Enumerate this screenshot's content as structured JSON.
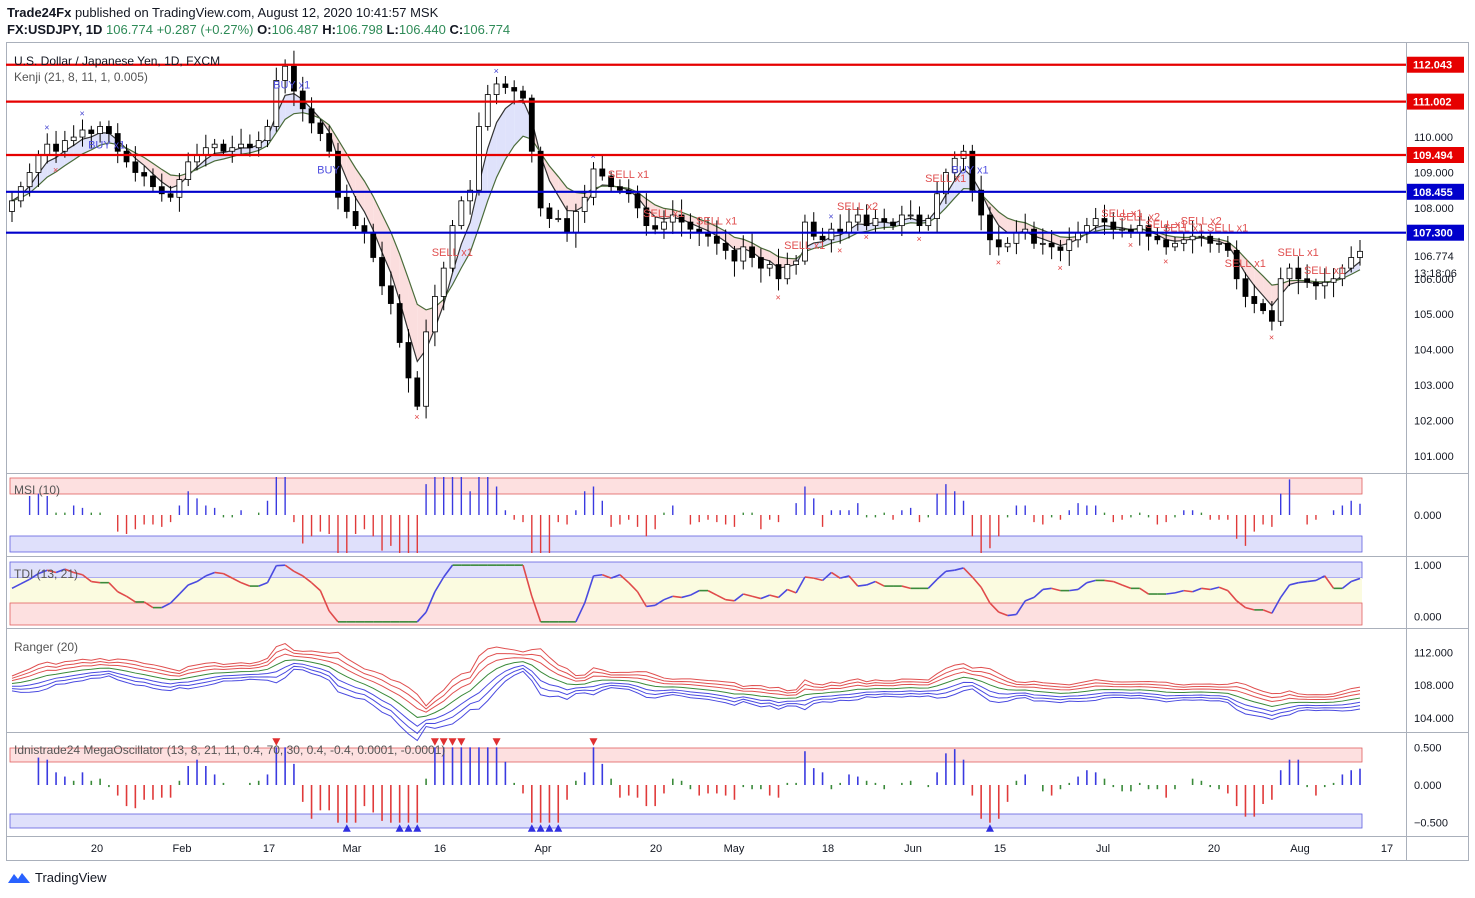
{
  "header": {
    "publisher": "Trade24Fx",
    "published_text": "published on TradingView.com, August 12, 2020 10:41:57 MSK",
    "symbol": "FX:USDJPY, 1D",
    "last": "106.774",
    "change": "+0.287 (+0.27%)",
    "o_label": "O:",
    "o": "106.487",
    "h_label": "H:",
    "h": "106.798",
    "l_label": "L:",
    "l": "106.440",
    "c_label": "C:",
    "c": "106.774"
  },
  "colors": {
    "up": "#ffffff",
    "down": "#000000",
    "red_line": "#e60000",
    "blue_line": "#0000cc",
    "sell": "#e05050",
    "buy": "#5050e0"
  },
  "main_pane": {
    "title": "U.S. Dollar / Japanese Yen, 1D, FXCM",
    "indicator": "Kenji (21, 8, 11, 1, 0.005)",
    "price_labels": [
      "110.000",
      "109.000",
      "108.000",
      "106.000",
      "105.000",
      "104.000",
      "103.000",
      "102.000",
      "101.000"
    ],
    "last_price_label": "106.774",
    "countdown": "13:18:06",
    "levels": [
      {
        "value": "112.043",
        "color": "#e60000"
      },
      {
        "value": "111.002",
        "color": "#e60000"
      },
      {
        "value": "109.494",
        "color": "#e60000"
      },
      {
        "value": "108.455",
        "color": "#0000cc"
      },
      {
        "value": "107.300",
        "color": "#0000cc"
      }
    ],
    "signals": [
      "BUY x1",
      "BUY x1",
      "BUY",
      "SELL x1",
      "SELL x1",
      "SELL x1",
      "SELL x1",
      "SELL x1",
      "SELL x2",
      "SELL x1",
      "BUY x1",
      "SELL x1",
      "SELL x2",
      "SELL x1",
      "SELL x1",
      "SELL x2",
      "SELL x1",
      "SELL x1",
      "SELL x1",
      "SELL x1"
    ]
  },
  "msi_pane": {
    "title": "MSI (10)",
    "labels": [
      "0.000"
    ]
  },
  "tdi_pane": {
    "title": "TDI (13, 21)",
    "labels": [
      "1.000",
      "0.000"
    ]
  },
  "ranger_pane": {
    "title": "Ranger (20)",
    "labels": [
      "112.000",
      "108.000",
      "104.000"
    ]
  },
  "mega_pane": {
    "title": "Idnistrade24 MegaOscillator (13, 8, 21, 11, 0.4, 70, 30, 0.4, -0.4, 0.0001, -0.0001)",
    "labels": [
      "0.500",
      "0.000",
      "−0.500"
    ]
  },
  "x_axis": [
    "20",
    "Feb",
    "17",
    "Mar",
    "16",
    "Apr",
    "20",
    "May",
    "18",
    "Jun",
    "15",
    "Jul",
    "20",
    "Aug",
    "17"
  ],
  "footer": {
    "brand": "TradingView"
  },
  "chart_data": {
    "type": "candlestick",
    "title": "U.S. Dollar / Japanese Yen, 1D, FXCM",
    "ylim": [
      100.6,
      112.6
    ],
    "last_close": 106.774,
    "horizontal_levels": [
      112.043,
      111.002,
      109.494,
      108.455,
      107.3
    ],
    "close_series": [
      108.2,
      108.6,
      109.0,
      109.5,
      109.8,
      109.6,
      109.9,
      110.0,
      110.2,
      110.1,
      110.3,
      110.1,
      109.6,
      109.3,
      109.0,
      108.9,
      108.6,
      108.4,
      108.3,
      108.8,
      109.3,
      109.5,
      109.7,
      109.8,
      109.6,
      109.7,
      109.8,
      109.7,
      109.9,
      110.3,
      111.6,
      112.0,
      111.3,
      110.8,
      110.4,
      110.1,
      109.6,
      108.3,
      107.9,
      107.5,
      107.3,
      106.6,
      105.8,
      105.3,
      104.2,
      103.2,
      102.4,
      104.5,
      105.5,
      106.3,
      107.5,
      108.2,
      108.5,
      110.3,
      111.2,
      111.5,
      111.4,
      111.3,
      111.1,
      109.6,
      108.0,
      107.7,
      107.7,
      107.3,
      107.9,
      108.3,
      109.1,
      108.9,
      108.6,
      108.5,
      108.4,
      108.0,
      107.5,
      107.4,
      107.6,
      107.8,
      107.6,
      107.4,
      107.3,
      107.2,
      107.0,
      106.8,
      106.5,
      106.9,
      106.6,
      106.3,
      106.4,
      106.0,
      106.4,
      106.5,
      107.6,
      107.2,
      107.1,
      107.4,
      107.3,
      107.6,
      107.8,
      107.5,
      107.7,
      107.6,
      107.5,
      107.8,
      107.8,
      107.5,
      107.7,
      108.4,
      109.0,
      109.4,
      109.6,
      108.5,
      107.8,
      107.1,
      106.9,
      107.0,
      107.3,
      107.4,
      107.0,
      107.0,
      106.9,
      106.8,
      107.1,
      107.3,
      107.5,
      107.7,
      107.6,
      107.4,
      107.4,
      107.3,
      107.5,
      107.2,
      107.1,
      106.9,
      107.0,
      107.1,
      107.2,
      107.2,
      107.0,
      107.0,
      106.8,
      106.0,
      105.5,
      105.3,
      105.1,
      104.8,
      106.0,
      106.3,
      106.0,
      105.9,
      105.8,
      105.9,
      106.0,
      106.3,
      106.6,
      106.774
    ],
    "msi": {
      "ylim": [
        -1,
        1
      ],
      "zero": 0
    },
    "tdi": {
      "ylim": [
        -0.2,
        1.1
      ]
    },
    "ranger": {
      "ylim": [
        102.5,
        114.5
      ]
    },
    "mega": {
      "ylim": [
        -0.65,
        0.65
      ]
    }
  }
}
